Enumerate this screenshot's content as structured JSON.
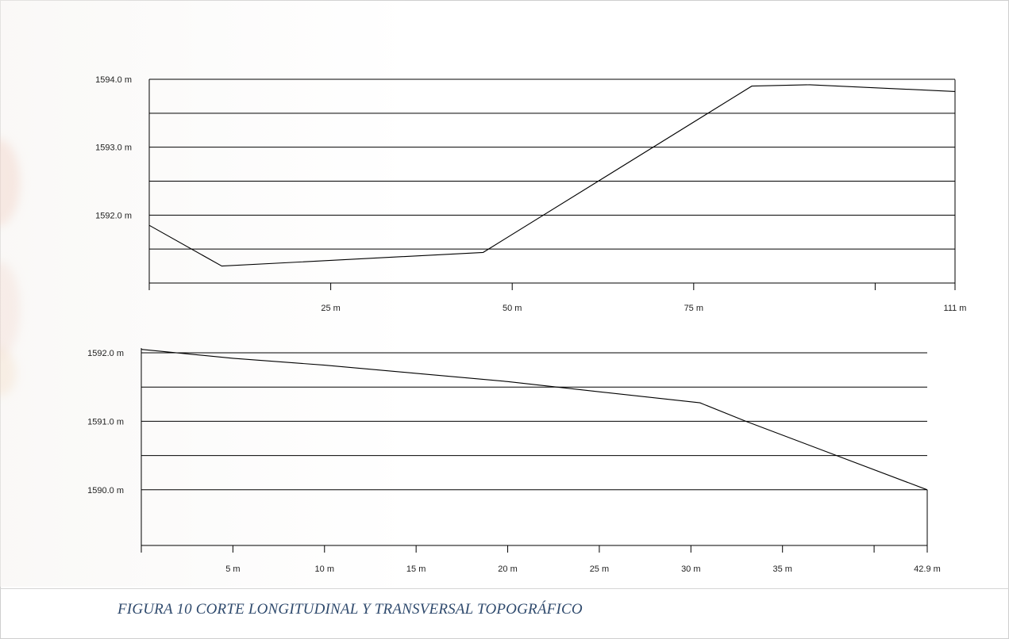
{
  "caption": "FIGURA 10 CORTE LONGITUDINAL Y TRANSVERSAL TOPOGRÁFICO",
  "chart_data": [
    {
      "type": "line",
      "title": "",
      "xlabel": "",
      "ylabel": "",
      "xlim": [
        0,
        111
      ],
      "ylim": [
        1591.0,
        1594.0
      ],
      "y_gridlines": [
        1591.5,
        1592.0,
        1592.5,
        1593.0,
        1593.5,
        1594.0
      ],
      "grid": true,
      "y_tick_labels": [
        {
          "value": 1594.0,
          "label": "1594.0 m"
        },
        {
          "value": 1593.0,
          "label": "1593.0 m"
        },
        {
          "value": 1592.0,
          "label": "1592.0 m"
        }
      ],
      "x_ticks": [
        0,
        25,
        50,
        75,
        100,
        111
      ],
      "x_tick_labels": [
        {
          "value": 25,
          "label": "25 m"
        },
        {
          "value": 50,
          "label": "50 m"
        },
        {
          "value": 75,
          "label": "75 m"
        },
        {
          "value": 111,
          "label": "111 m"
        }
      ],
      "series": [
        {
          "x": [
            0,
            10,
            46,
            83,
            91,
            111
          ],
          "y": [
            1591.85,
            1591.25,
            1591.45,
            1593.9,
            1593.92,
            1593.82
          ]
        }
      ]
    },
    {
      "type": "line",
      "title": "",
      "xlabel": "",
      "ylabel": "",
      "xlim": [
        0,
        42.9
      ],
      "ylim": [
        1589.5,
        1592.0
      ],
      "y_gridlines": [
        1590.0,
        1590.5,
        1591.0,
        1591.5,
        1592.0
      ],
      "grid": true,
      "y_tick_labels": [
        {
          "value": 1592.0,
          "label": "1592.0 m"
        },
        {
          "value": 1591.0,
          "label": "1591.0 m"
        },
        {
          "value": 1590.0,
          "label": "1590.0 m"
        }
      ],
      "x_ticks": [
        0,
        5,
        10,
        15,
        20,
        25,
        30,
        35,
        40,
        42.9
      ],
      "x_tick_labels": [
        {
          "value": 5,
          "label": "5 m"
        },
        {
          "value": 10,
          "label": "10 m"
        },
        {
          "value": 15,
          "label": "15 m"
        },
        {
          "value": 20,
          "label": "20 m"
        },
        {
          "value": 25,
          "label": "25 m"
        },
        {
          "value": 30,
          "label": "30 m"
        },
        {
          "value": 35,
          "label": "35 m"
        },
        {
          "value": 42.9,
          "label": "42.9 m"
        }
      ],
      "series": [
        {
          "x": [
            0,
            5,
            10,
            15,
            20,
            25,
            30.5,
            33,
            42.9
          ],
          "y": [
            1592.05,
            1591.92,
            1591.82,
            1591.7,
            1591.58,
            1591.43,
            1591.27,
            1591.0,
            1590.0
          ]
        }
      ]
    }
  ]
}
